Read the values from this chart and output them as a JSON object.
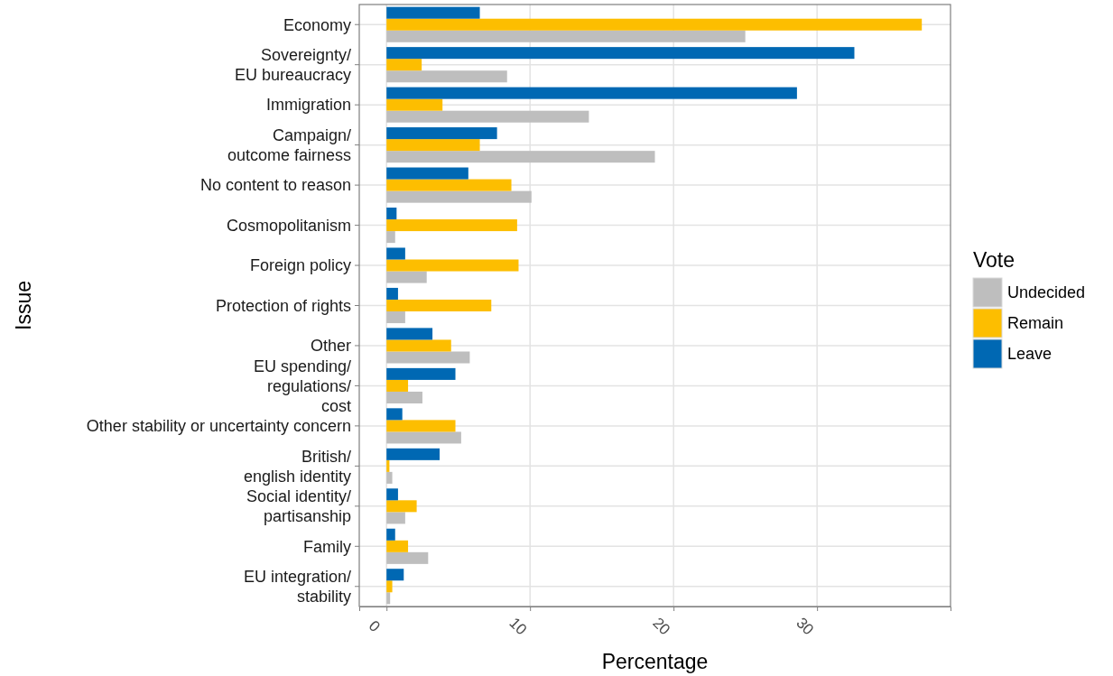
{
  "chart_data": {
    "type": "bar",
    "orientation": "horizontal",
    "xlabel": "Percentage",
    "ylabel": "Issue",
    "legend_title": "Vote",
    "legend": "right",
    "grid": true,
    "categories": [
      "Economy",
      "Sovereignty/\nEU bureaucracy",
      "Immigration",
      "Campaign/\noutcome fairness",
      "No content to reason",
      "Cosmopolitanism",
      "Foreign policy",
      "Protection of rights",
      "Other",
      "EU spending/\nregulations/\ncost",
      "Other stability or uncertainty concern",
      "British/\nenglish identity",
      "Social identity/\npartisanship",
      "Family",
      "EU integration/\nstability"
    ],
    "xlim": [
      -1.9,
      39.3
    ],
    "xticks": [
      0,
      10,
      20,
      30
    ],
    "series": [
      {
        "name": "Undecided",
        "color": "#bebebe",
        "values": [
          25.0,
          8.4,
          14.1,
          18.7,
          10.1,
          0.6,
          2.8,
          1.3,
          5.8,
          2.5,
          5.2,
          0.4,
          1.3,
          2.9,
          0.25
        ]
      },
      {
        "name": "Remain",
        "color": "#fdbe00",
        "values": [
          37.3,
          2.45,
          3.9,
          6.5,
          8.7,
          9.1,
          9.2,
          7.3,
          4.5,
          1.5,
          4.8,
          0.2,
          2.1,
          1.5,
          0.4
        ]
      },
      {
        "name": "Leave",
        "color": "#0068b3",
        "values": [
          6.5,
          32.6,
          28.6,
          7.7,
          5.7,
          0.7,
          1.3,
          0.8,
          3.2,
          4.8,
          1.1,
          3.7,
          0.8,
          0.6,
          1.2
        ]
      }
    ]
  }
}
